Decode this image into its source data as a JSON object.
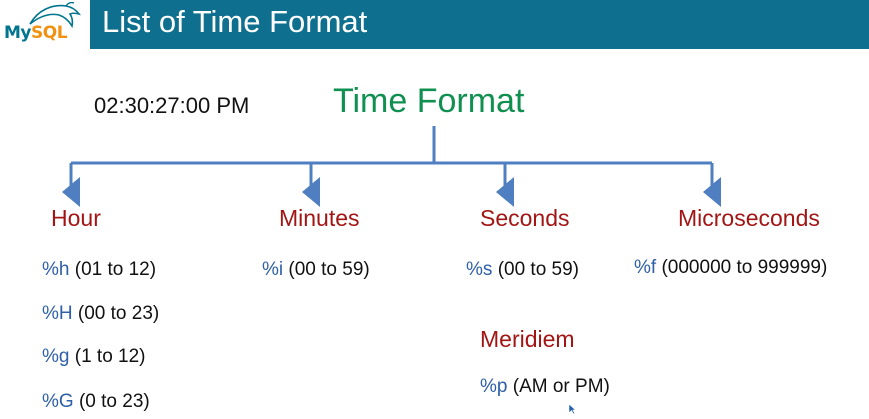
{
  "header": {
    "logo": {
      "my": "My",
      "sql": "SQL"
    },
    "title": "List of Time Format",
    "colors": {
      "title_bar": "#0e6f8e",
      "logo_my": "#00758f",
      "logo_sql": "#f29111"
    }
  },
  "diagram": {
    "example_time": "02:30:27:00 PM",
    "root": "Time Format",
    "colors": {
      "root": "#109050",
      "category": "#a31515",
      "specifier": "#2e5fa8",
      "connector": "#4f7fc0"
    },
    "categories": [
      {
        "label": "Hour",
        "items": [
          {
            "code": "%h",
            "range": "(01 to 12)"
          },
          {
            "code": "%H",
            "range": "(00 to 23)"
          },
          {
            "code": "%g",
            "range": "(1 to 12)"
          },
          {
            "code": "%G",
            "range": "(0 to 23)"
          }
        ]
      },
      {
        "label": "Minutes",
        "items": [
          {
            "code": "%i",
            "range": "(00 to 59)"
          }
        ]
      },
      {
        "label": "Seconds",
        "items": [
          {
            "code": "%s",
            "range": "(00 to 59)"
          }
        ]
      },
      {
        "label": "Microseconds",
        "items": [
          {
            "code": "%f",
            "range": "(000000 to 999999)"
          }
        ]
      }
    ],
    "meridiem": {
      "label": "Meridiem",
      "items": [
        {
          "code": "%p",
          "range": "(AM or PM)"
        }
      ]
    }
  }
}
